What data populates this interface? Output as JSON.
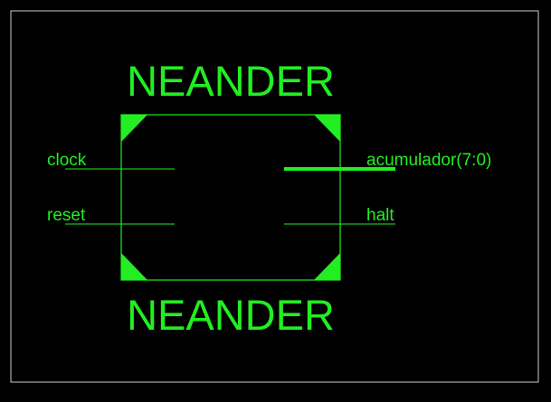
{
  "schematic": {
    "top_label": "NEANDER",
    "bottom_label": "NEANDER",
    "inputs": [
      {
        "name": "clock"
      },
      {
        "name": "reset"
      }
    ],
    "outputs": [
      {
        "name": "acumulador(7:0)",
        "bus": true
      },
      {
        "name": "halt",
        "bus": false
      }
    ],
    "colors": {
      "background": "#000000",
      "symbol": "#22ee22",
      "frame": "#cccccc"
    }
  }
}
